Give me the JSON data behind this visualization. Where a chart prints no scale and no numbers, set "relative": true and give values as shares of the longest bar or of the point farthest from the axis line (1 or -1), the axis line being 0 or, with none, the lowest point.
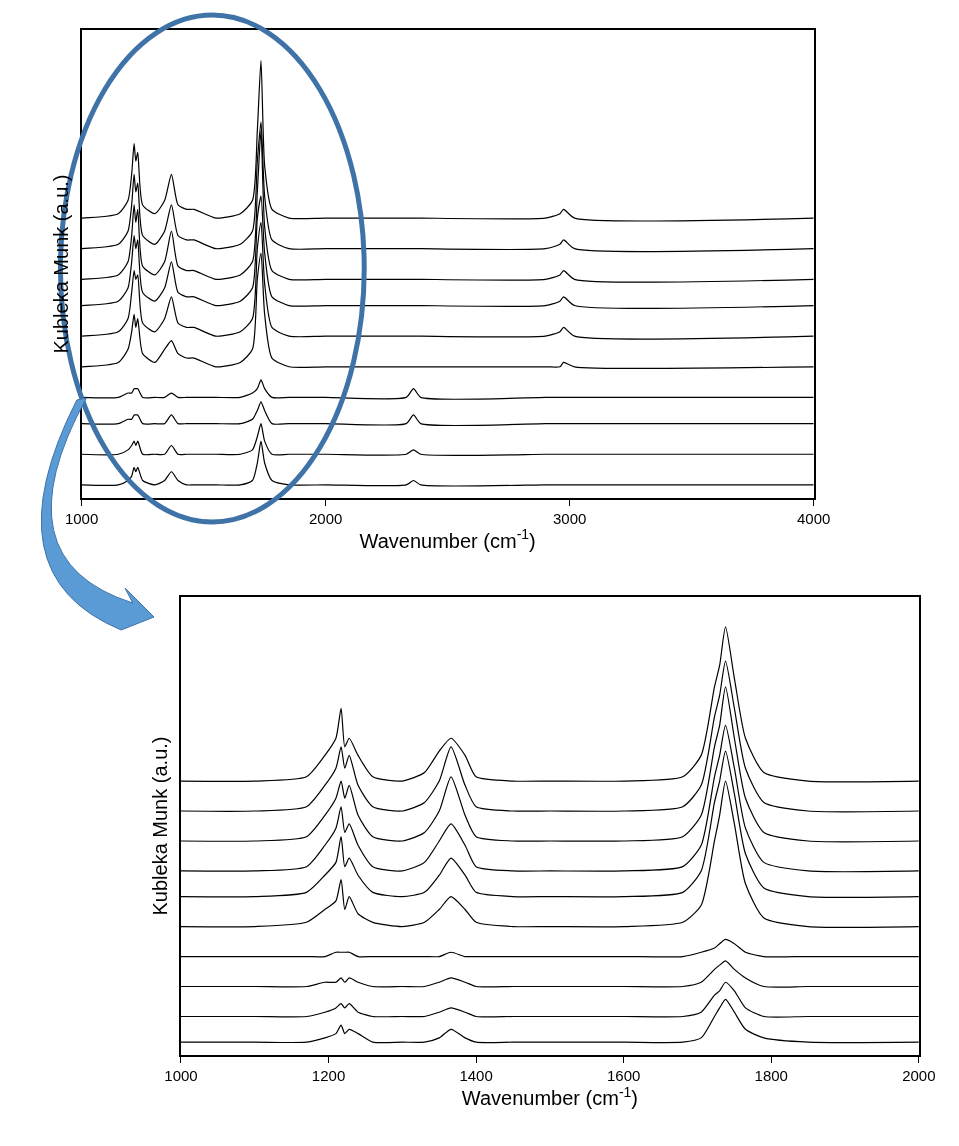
{
  "chart_data": [
    {
      "type": "line",
      "relative": true,
      "xlabel": "Wavenumber (cm$^{-1}$)",
      "ylabel": "Kubleka Munk (a.u.)",
      "xlim": [
        1000,
        4000
      ],
      "xticks": [
        1000,
        2000,
        3000,
        4000
      ],
      "x": [
        1000,
        1150,
        1190,
        1205,
        1215,
        1222,
        1230,
        1250,
        1300,
        1340,
        1368,
        1395,
        1430,
        1460,
        1550,
        1650,
        1700,
        1720,
        1735,
        1750,
        1780,
        1850,
        2000,
        2330,
        2360,
        2390,
        2900,
        2960,
        2975,
        3020,
        4000
      ],
      "series": [
        {
          "color": "#000000",
          "values": [
            0.64,
            0.65,
            0.68,
            0.74,
            0.81,
            0.77,
            0.79,
            0.67,
            0.65,
            0.68,
            0.74,
            0.67,
            0.66,
            0.66,
            0.64,
            0.65,
            0.68,
            0.84,
            1.0,
            0.76,
            0.66,
            0.64,
            0.64,
            0.64,
            0.64,
            0.64,
            0.64,
            0.65,
            0.66,
            0.64,
            0.64
          ]
        },
        {
          "color": "#000000",
          "values": [
            0.57,
            0.58,
            0.61,
            0.67,
            0.74,
            0.7,
            0.72,
            0.6,
            0.58,
            0.61,
            0.67,
            0.6,
            0.59,
            0.59,
            0.57,
            0.58,
            0.61,
            0.77,
            0.86,
            0.69,
            0.59,
            0.57,
            0.57,
            0.57,
            0.57,
            0.57,
            0.57,
            0.58,
            0.59,
            0.57,
            0.57
          ]
        },
        {
          "color": "#000000",
          "values": [
            0.5,
            0.51,
            0.54,
            0.6,
            0.67,
            0.63,
            0.66,
            0.53,
            0.51,
            0.54,
            0.61,
            0.53,
            0.52,
            0.52,
            0.5,
            0.51,
            0.54,
            0.7,
            0.84,
            0.62,
            0.52,
            0.5,
            0.5,
            0.5,
            0.5,
            0.5,
            0.5,
            0.51,
            0.52,
            0.5,
            0.5
          ]
        },
        {
          "color": "#000000",
          "values": [
            0.44,
            0.45,
            0.48,
            0.54,
            0.6,
            0.57,
            0.59,
            0.47,
            0.45,
            0.48,
            0.54,
            0.47,
            0.46,
            0.46,
            0.44,
            0.45,
            0.48,
            0.64,
            0.69,
            0.56,
            0.46,
            0.44,
            0.44,
            0.44,
            0.44,
            0.44,
            0.44,
            0.45,
            0.46,
            0.44,
            0.44
          ]
        },
        {
          "color": "#000000",
          "values": [
            0.37,
            0.38,
            0.41,
            0.47,
            0.52,
            0.5,
            0.51,
            0.4,
            0.38,
            0.41,
            0.46,
            0.4,
            0.39,
            0.39,
            0.37,
            0.38,
            0.41,
            0.57,
            0.63,
            0.49,
            0.39,
            0.37,
            0.37,
            0.37,
            0.37,
            0.37,
            0.37,
            0.38,
            0.39,
            0.37,
            0.37
          ]
        },
        {
          "color": "#000000",
          "values": [
            0.3,
            0.31,
            0.34,
            0.38,
            0.42,
            0.39,
            0.41,
            0.33,
            0.31,
            0.34,
            0.36,
            0.33,
            0.32,
            0.32,
            0.3,
            0.31,
            0.34,
            0.5,
            0.56,
            0.42,
            0.32,
            0.3,
            0.3,
            0.3,
            0.3,
            0.3,
            0.3,
            0.3,
            0.31,
            0.3,
            0.3
          ]
        },
        {
          "color": "#000000",
          "values": [
            0.23,
            0.23,
            0.24,
            0.24,
            0.25,
            0.25,
            0.25,
            0.23,
            0.23,
            0.23,
            0.24,
            0.23,
            0.23,
            0.23,
            0.23,
            0.23,
            0.24,
            0.25,
            0.27,
            0.25,
            0.23,
            0.23,
            0.23,
            0.23,
            0.25,
            0.23,
            0.23,
            0.23,
            0.23,
            0.23,
            0.23
          ]
        },
        {
          "color": "#000000",
          "values": [
            0.17,
            0.17,
            0.18,
            0.18,
            0.19,
            0.19,
            0.19,
            0.17,
            0.17,
            0.17,
            0.19,
            0.17,
            0.17,
            0.17,
            0.17,
            0.17,
            0.18,
            0.2,
            0.22,
            0.2,
            0.17,
            0.17,
            0.17,
            0.17,
            0.19,
            0.17,
            0.17,
            0.17,
            0.17,
            0.17,
            0.17
          ]
        },
        {
          "color": "#000000",
          "values": [
            0.1,
            0.1,
            0.11,
            0.12,
            0.13,
            0.12,
            0.13,
            0.1,
            0.1,
            0.1,
            0.12,
            0.1,
            0.1,
            0.1,
            0.1,
            0.1,
            0.11,
            0.14,
            0.17,
            0.13,
            0.1,
            0.1,
            0.1,
            0.1,
            0.11,
            0.1,
            0.1,
            0.1,
            0.1,
            0.1,
            0.1
          ]
        },
        {
          "color": "#000000",
          "values": [
            0.03,
            0.03,
            0.04,
            0.05,
            0.07,
            0.06,
            0.07,
            0.04,
            0.03,
            0.04,
            0.06,
            0.04,
            0.03,
            0.03,
            0.03,
            0.03,
            0.04,
            0.08,
            0.13,
            0.08,
            0.04,
            0.03,
            0.03,
            0.03,
            0.04,
            0.03,
            0.03,
            0.03,
            0.03,
            0.03,
            0.03
          ]
        }
      ]
    },
    {
      "type": "line",
      "relative": true,
      "xlabel": "Wavenumber (cm$^{-1}$)",
      "ylabel": "Kubleka Munk (a.u.)",
      "xlim": [
        1000,
        2000
      ],
      "xticks": [
        1000,
        1200,
        1400,
        1600,
        1800,
        2000
      ],
      "x": [
        1000,
        1100,
        1170,
        1195,
        1210,
        1217,
        1222,
        1228,
        1240,
        1260,
        1300,
        1330,
        1350,
        1366,
        1385,
        1400,
        1450,
        1500,
        1600,
        1680,
        1705,
        1723,
        1730,
        1738,
        1750,
        1765,
        1790,
        1850,
        2000
      ],
      "series": [
        {
          "color": "#000000",
          "values": [
            0.64,
            0.64,
            0.65,
            0.7,
            0.74,
            0.81,
            0.72,
            0.74,
            0.7,
            0.65,
            0.64,
            0.66,
            0.71,
            0.74,
            0.7,
            0.65,
            0.64,
            0.64,
            0.64,
            0.65,
            0.7,
            0.86,
            0.91,
            1.0,
            0.88,
            0.74,
            0.66,
            0.64,
            0.64
          ]
        },
        {
          "color": "#000000",
          "values": [
            0.57,
            0.57,
            0.58,
            0.63,
            0.67,
            0.72,
            0.67,
            0.7,
            0.63,
            0.58,
            0.57,
            0.59,
            0.64,
            0.72,
            0.63,
            0.58,
            0.57,
            0.57,
            0.57,
            0.58,
            0.63,
            0.79,
            0.84,
            0.92,
            0.81,
            0.67,
            0.59,
            0.57,
            0.57
          ]
        },
        {
          "color": "#000000",
          "values": [
            0.5,
            0.5,
            0.51,
            0.56,
            0.6,
            0.64,
            0.6,
            0.63,
            0.56,
            0.51,
            0.5,
            0.52,
            0.57,
            0.65,
            0.56,
            0.51,
            0.5,
            0.5,
            0.5,
            0.51,
            0.56,
            0.72,
            0.77,
            0.86,
            0.74,
            0.6,
            0.52,
            0.5,
            0.5
          ]
        },
        {
          "color": "#000000",
          "values": [
            0.43,
            0.43,
            0.44,
            0.49,
            0.53,
            0.58,
            0.52,
            0.54,
            0.49,
            0.44,
            0.43,
            0.45,
            0.5,
            0.54,
            0.49,
            0.44,
            0.43,
            0.43,
            0.43,
            0.44,
            0.49,
            0.65,
            0.7,
            0.77,
            0.67,
            0.53,
            0.45,
            0.43,
            0.43
          ]
        },
        {
          "color": "#000000",
          "values": [
            0.37,
            0.37,
            0.38,
            0.42,
            0.45,
            0.51,
            0.44,
            0.46,
            0.42,
            0.38,
            0.37,
            0.38,
            0.42,
            0.46,
            0.42,
            0.38,
            0.37,
            0.37,
            0.37,
            0.38,
            0.43,
            0.59,
            0.64,
            0.71,
            0.61,
            0.47,
            0.39,
            0.37,
            0.37
          ]
        },
        {
          "color": "#000000",
          "values": [
            0.3,
            0.3,
            0.31,
            0.34,
            0.36,
            0.41,
            0.34,
            0.37,
            0.33,
            0.31,
            0.3,
            0.31,
            0.34,
            0.37,
            0.34,
            0.31,
            0.3,
            0.3,
            0.3,
            0.31,
            0.35,
            0.5,
            0.56,
            0.64,
            0.54,
            0.4,
            0.32,
            0.3,
            0.3
          ]
        },
        {
          "color": "#000000",
          "values": [
            0.23,
            0.23,
            0.23,
            0.23,
            0.24,
            0.24,
            0.24,
            0.24,
            0.23,
            0.23,
            0.23,
            0.23,
            0.23,
            0.24,
            0.23,
            0.23,
            0.23,
            0.23,
            0.23,
            0.23,
            0.24,
            0.25,
            0.26,
            0.27,
            0.26,
            0.24,
            0.23,
            0.23,
            0.23
          ]
        },
        {
          "color": "#000000",
          "values": [
            0.16,
            0.16,
            0.16,
            0.17,
            0.17,
            0.18,
            0.17,
            0.18,
            0.17,
            0.16,
            0.16,
            0.16,
            0.17,
            0.18,
            0.17,
            0.16,
            0.16,
            0.16,
            0.16,
            0.16,
            0.17,
            0.2,
            0.21,
            0.22,
            0.2,
            0.18,
            0.16,
            0.16,
            0.16
          ]
        },
        {
          "color": "#000000",
          "values": [
            0.09,
            0.09,
            0.09,
            0.1,
            0.11,
            0.12,
            0.11,
            0.12,
            0.1,
            0.09,
            0.09,
            0.09,
            0.1,
            0.11,
            0.1,
            0.09,
            0.09,
            0.09,
            0.09,
            0.09,
            0.1,
            0.14,
            0.15,
            0.17,
            0.15,
            0.11,
            0.09,
            0.09,
            0.09
          ]
        },
        {
          "color": "#000000",
          "values": [
            0.03,
            0.03,
            0.03,
            0.04,
            0.05,
            0.07,
            0.05,
            0.06,
            0.05,
            0.03,
            0.03,
            0.03,
            0.04,
            0.06,
            0.04,
            0.03,
            0.03,
            0.03,
            0.03,
            0.03,
            0.04,
            0.09,
            0.11,
            0.13,
            0.1,
            0.06,
            0.04,
            0.03,
            0.03
          ]
        }
      ]
    }
  ]
}
